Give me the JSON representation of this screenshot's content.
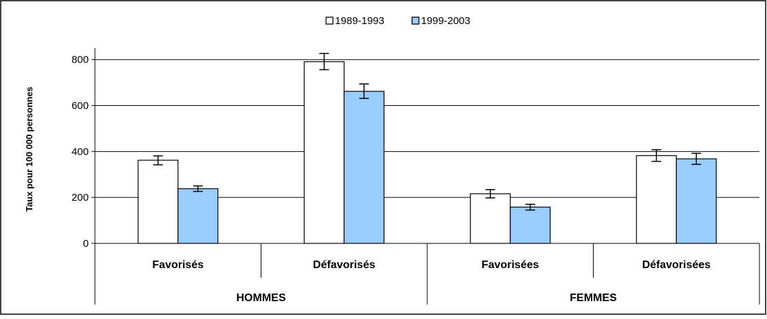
{
  "chart_data": {
    "type": "bar",
    "title": "",
    "xlabel": "",
    "ylabel": "Taux pour 100 000 personnes",
    "ylim": [
      0,
      850
    ],
    "yticks": [
      0,
      200,
      400,
      600,
      800
    ],
    "grid": true,
    "legend_position": "top-center",
    "groups": [
      {
        "label": "HOMMES",
        "categories": [
          "Favorisés",
          "Défavorisés"
        ]
      },
      {
        "label": "FEMMES",
        "categories": [
          "Favorisées",
          "Défavorisées"
        ]
      }
    ],
    "categories": [
      "Favorisés",
      "Défavorisés",
      "Favorisées",
      "Défavorisées"
    ],
    "series": [
      {
        "name": "1989-1993",
        "color": "#ffffff",
        "values": [
          362,
          791,
          216,
          382
        ],
        "error_low": [
          342,
          756,
          198,
          357
        ],
        "error_high": [
          381,
          827,
          234,
          408
        ]
      },
      {
        "name": "1999-2003",
        "color": "#99ccff",
        "values": [
          238,
          662,
          158,
          368
        ],
        "error_low": [
          226,
          631,
          145,
          344
        ],
        "error_high": [
          250,
          694,
          170,
          392
        ]
      }
    ]
  }
}
